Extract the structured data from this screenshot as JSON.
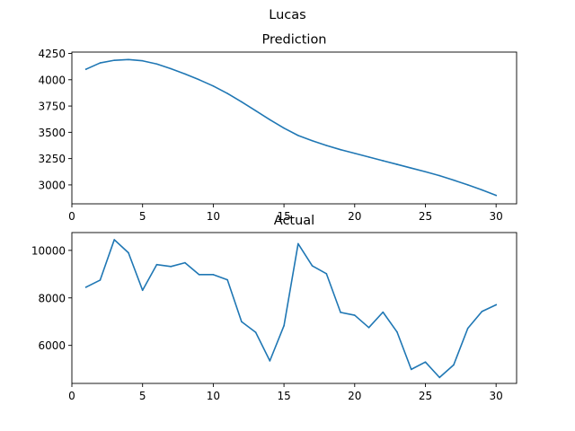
{
  "figure": {
    "suptitle": "Lucas"
  },
  "chart_data": [
    {
      "type": "line",
      "title": "Prediction",
      "xlabel": "",
      "ylabel": "",
      "xlim": [
        0,
        31.45
      ],
      "ylim": [
        2820,
        4263
      ],
      "x_ticks": [
        0,
        5,
        10,
        15,
        20,
        25,
        30
      ],
      "y_ticks": [
        3000,
        3250,
        3500,
        3750,
        4000,
        4250
      ],
      "grid": false,
      "x": [
        1,
        2,
        3,
        4,
        5,
        6,
        7,
        8,
        9,
        10,
        11,
        12,
        13,
        14,
        15,
        16,
        17,
        18,
        19,
        20,
        21,
        22,
        23,
        24,
        25,
        26,
        27,
        28,
        29,
        30
      ],
      "series": [
        {
          "color": "#1f77b4",
          "values": [
            4100,
            4160,
            4185,
            4192,
            4180,
            4150,
            4105,
            4055,
            4000,
            3940,
            3870,
            3790,
            3705,
            3620,
            3540,
            3470,
            3420,
            3375,
            3335,
            3300,
            3265,
            3230,
            3195,
            3160,
            3125,
            3088,
            3045,
            3000,
            2952,
            2900
          ]
        }
      ]
    },
    {
      "type": "line",
      "title": "Actual",
      "xlabel": "",
      "ylabel": "",
      "xlim": [
        0,
        31.45
      ],
      "ylim": [
        4400,
        10750
      ],
      "x_ticks": [
        0,
        5,
        10,
        15,
        20,
        25,
        30
      ],
      "y_ticks": [
        6000,
        8000,
        10000
      ],
      "grid": false,
      "x": [
        1,
        2,
        3,
        4,
        5,
        6,
        7,
        8,
        9,
        10,
        11,
        12,
        13,
        14,
        15,
        16,
        17,
        18,
        19,
        20,
        21,
        22,
        23,
        24,
        25,
        26,
        27,
        28,
        29,
        30
      ],
      "series": [
        {
          "color": "#1f77b4",
          "values": [
            8450,
            8750,
            10450,
            9900,
            8320,
            9400,
            9320,
            9480,
            8980,
            8980,
            8760,
            7000,
            6550,
            5350,
            6830,
            10280,
            9350,
            9020,
            7390,
            7270,
            6750,
            7400,
            6560,
            4990,
            5300,
            4650,
            5180,
            6720,
            7430,
            7710
          ]
        }
      ]
    }
  ]
}
